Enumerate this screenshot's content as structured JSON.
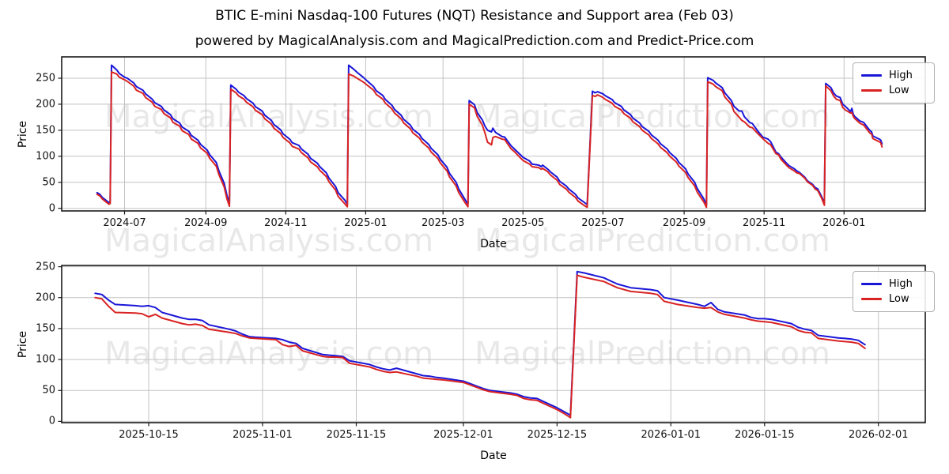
{
  "figure": {
    "title": "BTIC E-mini Nasdaq-100 Futures (NQT) Resistance and Support area (Feb 03)",
    "subtitle": "powered by MagicalAnalysis.com and MagicalPrediction.com and Predict-Price.com",
    "watermarks": {
      "left": "MagicalAnalysis.com",
      "right": "MagicalPrediction.com"
    },
    "colors": {
      "high": "#1a16d8",
      "low": "#d92323",
      "grid": "#c3c3c3",
      "spine": "#1a1a1a",
      "watermark": "#e8e8e8"
    }
  },
  "chart_data": [
    {
      "type": "line",
      "panel": "top",
      "title": "",
      "xlabel": "Date",
      "ylabel": "Price",
      "grid": true,
      "legend_position": "upper right",
      "xlim": [
        "2024-05-14",
        "2026-03-04"
      ],
      "ylim": [
        -5,
        291
      ],
      "yticks": [
        0,
        50,
        100,
        150,
        200,
        250
      ],
      "xticks": [
        {
          "date": "2024-07-01",
          "label": "2024-07"
        },
        {
          "date": "2024-09-01",
          "label": "2024-09"
        },
        {
          "date": "2024-11-01",
          "label": "2024-11"
        },
        {
          "date": "2025-01-01",
          "label": "2025-01"
        },
        {
          "date": "2025-03-01",
          "label": "2025-03"
        },
        {
          "date": "2025-05-01",
          "label": "2025-05"
        },
        {
          "date": "2025-07-01",
          "label": "2025-07"
        },
        {
          "date": "2025-09-01",
          "label": "2025-09"
        },
        {
          "date": "2025-11-01",
          "label": "2025-11"
        },
        {
          "date": "2026-01-01",
          "label": "2026-01"
        }
      ],
      "x": [
        "2024-06-10",
        "2024-06-12",
        "2024-06-14",
        "2024-06-17",
        "2024-06-19",
        "2024-06-20",
        "2024-06-21",
        "2024-06-25",
        "2024-06-27",
        "2024-07-01",
        "2024-07-03",
        "2024-07-08",
        "2024-07-10",
        "2024-07-15",
        "2024-07-17",
        "2024-07-22",
        "2024-07-24",
        "2024-07-29",
        "2024-07-31",
        "2024-08-05",
        "2024-08-07",
        "2024-08-12",
        "2024-08-14",
        "2024-08-19",
        "2024-08-21",
        "2024-08-26",
        "2024-08-28",
        "2024-09-02",
        "2024-09-04",
        "2024-09-09",
        "2024-09-11",
        "2024-09-15",
        "2024-09-17",
        "2024-09-19",
        "2024-09-20",
        "2024-09-24",
        "2024-09-26",
        "2024-09-30",
        "2024-10-02",
        "2024-10-07",
        "2024-10-09",
        "2024-10-14",
        "2024-10-16",
        "2024-10-21",
        "2024-10-23",
        "2024-10-28",
        "2024-10-30",
        "2024-11-04",
        "2024-11-06",
        "2024-11-11",
        "2024-11-13",
        "2024-11-18",
        "2024-11-20",
        "2024-11-25",
        "2024-11-27",
        "2024-12-02",
        "2024-12-04",
        "2024-12-09",
        "2024-12-11",
        "2024-12-16",
        "2024-12-18",
        "2024-12-19",
        "2024-12-23",
        "2024-12-26",
        "2024-12-30",
        "2025-01-02",
        "2025-01-07",
        "2025-01-09",
        "2025-01-14",
        "2025-01-16",
        "2025-01-21",
        "2025-01-23",
        "2025-01-28",
        "2025-01-30",
        "2025-02-04",
        "2025-02-06",
        "2025-02-11",
        "2025-02-13",
        "2025-02-18",
        "2025-02-20",
        "2025-02-25",
        "2025-02-27",
        "2025-03-04",
        "2025-03-06",
        "2025-03-11",
        "2025-03-13",
        "2025-03-18",
        "2025-03-20",
        "2025-03-21",
        "2025-03-25",
        "2025-03-27",
        "2025-03-31",
        "2025-04-02",
        "2025-04-04",
        "2025-04-07",
        "2025-04-08",
        "2025-04-10",
        "2025-04-15",
        "2025-04-17",
        "2025-04-22",
        "2025-04-24",
        "2025-04-29",
        "2025-05-01",
        "2025-05-06",
        "2025-05-08",
        "2025-05-13",
        "2025-05-15",
        "2025-05-16",
        "2025-05-20",
        "2025-05-22",
        "2025-05-27",
        "2025-05-29",
        "2025-06-03",
        "2025-06-05",
        "2025-06-10",
        "2025-06-12",
        "2025-06-17",
        "2025-06-19",
        "2025-06-23",
        "2025-06-25",
        "2025-06-27",
        "2025-07-01",
        "2025-07-03",
        "2025-07-08",
        "2025-07-10",
        "2025-07-15",
        "2025-07-17",
        "2025-07-22",
        "2025-07-24",
        "2025-07-29",
        "2025-07-31",
        "2025-08-05",
        "2025-08-07",
        "2025-08-12",
        "2025-08-14",
        "2025-08-19",
        "2025-08-21",
        "2025-08-26",
        "2025-08-28",
        "2025-09-02",
        "2025-09-04",
        "2025-09-09",
        "2025-09-11",
        "2025-09-16",
        "2025-09-18",
        "2025-09-19",
        "2025-09-23",
        "2025-09-25",
        "2025-09-30",
        "2025-10-02",
        "2025-10-07",
        "2025-10-09",
        "2025-10-13",
        "2025-10-15",
        "2025-10-17",
        "2025-10-21",
        "2025-10-23",
        "2025-10-27",
        "2025-10-29",
        "2025-10-31",
        "2025-11-04",
        "2025-11-06",
        "2025-11-10",
        "2025-11-12",
        "2025-11-14",
        "2025-11-18",
        "2025-11-20",
        "2025-11-24",
        "2025-11-26",
        "2025-11-28",
        "2025-12-02",
        "2025-12-04",
        "2025-12-08",
        "2025-12-10",
        "2025-12-12",
        "2025-12-15",
        "2025-12-17",
        "2025-12-18",
        "2025-12-19",
        "2025-12-22",
        "2025-12-24",
        "2025-12-26",
        "2025-12-29",
        "2025-12-31",
        "2026-01-02",
        "2026-01-06",
        "2026-01-07",
        "2026-01-08",
        "2026-01-09",
        "2026-01-13",
        "2026-01-15",
        "2026-01-16",
        "2026-01-20",
        "2026-01-21",
        "2026-01-22",
        "2026-01-23",
        "2026-01-27",
        "2026-01-28",
        "2026-01-29",
        "2026-01-30"
      ],
      "series": [
        {
          "name": "High",
          "color_key": "high",
          "values": [
            30,
            27,
            21,
            15,
            11,
            13,
            275,
            266,
            259,
            252,
            250,
            241,
            234,
            227,
            220,
            210,
            203,
            196,
            189,
            180,
            172,
            164,
            156,
            148,
            140,
            131,
            123,
            112,
            103,
            88,
            72,
            48,
            26,
            9,
            237,
            229,
            223,
            217,
            211,
            202,
            195,
            187,
            179,
            169,
            161,
            151,
            143,
            133,
            126,
            121,
            114,
            104,
            96,
            87,
            80,
            68,
            58,
            42,
            30,
            16,
            8,
            275,
            267,
            260,
            252,
            245,
            234,
            226,
            217,
            209,
            198,
            190,
            179,
            171,
            160,
            152,
            142,
            134,
            123,
            115,
            103,
            94,
            79,
            67,
            50,
            37,
            16,
            8,
            207,
            199,
            184,
            170,
            158,
            150,
            147,
            154,
            146,
            138,
            137,
            120,
            115,
            103,
            98,
            91,
            85,
            83,
            80,
            83,
            75,
            70,
            60,
            52,
            43,
            37,
            27,
            20,
            11,
            7,
            225,
            222,
            224,
            220,
            216,
            209,
            203,
            196,
            189,
            180,
            173,
            164,
            157,
            148,
            141,
            131,
            124,
            114,
            107,
            96,
            88,
            76,
            66,
            50,
            38,
            18,
            7,
            251,
            246,
            241,
            232,
            222,
            207,
            196,
            187,
            187,
            176,
            165,
            163,
            149,
            143,
            137,
            133,
            128,
            108,
            105,
            98,
            87,
            82,
            76,
            72,
            69,
            60,
            53,
            46,
            40,
            37,
            22,
            10,
            240,
            238,
            232,
            222,
            216,
            213,
            200,
            196,
            186,
            192,
            181,
            177,
            168,
            166,
            165,
            152,
            149,
            147,
            139,
            134,
            133,
            131,
            124
          ]
        },
        {
          "name": "Low",
          "color_key": "low",
          "values": [
            27,
            24,
            18,
            12,
            8,
            9,
            262,
            258,
            252,
            247,
            244,
            235,
            227,
            221,
            213,
            204,
            196,
            190,
            182,
            174,
            165,
            158,
            149,
            142,
            133,
            125,
            116,
            106,
            96,
            81,
            65,
            41,
            19,
            4,
            229,
            222,
            216,
            210,
            204,
            195,
            188,
            180,
            172,
            162,
            154,
            144,
            136,
            126,
            119,
            114,
            107,
            97,
            89,
            80,
            73,
            61,
            51,
            35,
            23,
            9,
            3,
            258,
            254,
            249,
            243,
            237,
            227,
            219,
            210,
            202,
            191,
            183,
            172,
            164,
            153,
            145,
            135,
            127,
            116,
            108,
            96,
            87,
            72,
            60,
            43,
            30,
            10,
            3,
            200,
            193,
            177,
            160,
            145,
            127,
            122,
            136,
            138,
            133,
            132,
            114,
            110,
            97,
            92,
            85,
            80,
            78,
            75,
            77,
            70,
            64,
            54,
            46,
            37,
            31,
            21,
            14,
            5,
            2,
            217,
            215,
            218,
            213,
            209,
            202,
            196,
            189,
            182,
            173,
            166,
            157,
            150,
            141,
            134,
            124,
            117,
            107,
            100,
            89,
            81,
            69,
            59,
            43,
            31,
            12,
            2,
            243,
            239,
            234,
            226,
            214,
            200,
            186,
            175,
            169,
            166,
            156,
            155,
            144,
            139,
            134,
            125,
            122,
            105,
            103,
            94,
            83,
            78,
            72,
            68,
            67,
            58,
            51,
            44,
            37,
            34,
            19,
            6,
            235,
            233,
            226,
            216,
            210,
            207,
            194,
            189,
            183,
            184,
            177,
            173,
            164,
            161,
            160,
            147,
            144,
            143,
            134,
            129,
            128,
            126,
            118
          ]
        }
      ]
    },
    {
      "type": "line",
      "panel": "bottom",
      "title": "",
      "xlabel": "Date",
      "ylabel": "Price",
      "grid": true,
      "legend_position": "upper right",
      "xlim": [
        "2025-10-02",
        "2026-02-08"
      ],
      "ylim": [
        -2,
        252
      ],
      "yticks": [
        0,
        50,
        100,
        150,
        200,
        250
      ],
      "xticks": [
        {
          "date": "2025-10-15",
          "label": "2025-10-15"
        },
        {
          "date": "2025-11-01",
          "label": "2025-11-01"
        },
        {
          "date": "2025-11-15",
          "label": "2025-11-15"
        },
        {
          "date": "2025-12-01",
          "label": "2025-12-01"
        },
        {
          "date": "2025-12-15",
          "label": "2025-12-15"
        },
        {
          "date": "2026-01-01",
          "label": "2026-01-01"
        },
        {
          "date": "2026-01-15",
          "label": "2026-01-15"
        },
        {
          "date": "2026-02-01",
          "label": "2026-02-01"
        }
      ],
      "x": [
        "2025-10-07",
        "2025-10-08",
        "2025-10-09",
        "2025-10-10",
        "2025-10-13",
        "2025-10-14",
        "2025-10-15",
        "2025-10-16",
        "2025-10-17",
        "2025-10-20",
        "2025-10-21",
        "2025-10-22",
        "2025-10-23",
        "2025-10-24",
        "2025-10-27",
        "2025-10-28",
        "2025-10-29",
        "2025-10-30",
        "2025-10-31",
        "2025-11-03",
        "2025-11-04",
        "2025-11-05",
        "2025-11-06",
        "2025-11-07",
        "2025-11-10",
        "2025-11-11",
        "2025-11-12",
        "2025-11-13",
        "2025-11-14",
        "2025-11-17",
        "2025-11-18",
        "2025-11-19",
        "2025-11-20",
        "2025-11-21",
        "2025-11-24",
        "2025-11-25",
        "2025-11-26",
        "2025-11-27",
        "2025-11-28",
        "2025-12-01",
        "2025-12-02",
        "2025-12-03",
        "2025-12-04",
        "2025-12-05",
        "2025-12-08",
        "2025-12-09",
        "2025-12-10",
        "2025-12-11",
        "2025-12-12",
        "2025-12-15",
        "2025-12-16",
        "2025-12-17",
        "2025-12-18",
        "2025-12-19",
        "2025-12-22",
        "2025-12-23",
        "2025-12-24",
        "2025-12-26",
        "2025-12-29",
        "2025-12-30",
        "2025-12-31",
        "2026-01-02",
        "2026-01-05",
        "2026-01-06",
        "2026-01-07",
        "2026-01-08",
        "2026-01-09",
        "2026-01-12",
        "2026-01-13",
        "2026-01-14",
        "2026-01-15",
        "2026-01-16",
        "2026-01-19",
        "2026-01-20",
        "2026-01-21",
        "2026-01-22",
        "2026-01-23",
        "2026-01-26",
        "2026-01-27",
        "2026-01-28",
        "2026-01-29",
        "2026-01-30"
      ],
      "series": [
        {
          "name": "High",
          "color_key": "high",
          "values": [
            207,
            205,
            196,
            189,
            187,
            186,
            187,
            184,
            176,
            167,
            165,
            165,
            163,
            156,
            149,
            146,
            141,
            137,
            136,
            134,
            132,
            128,
            126,
            118,
            108,
            107,
            106,
            105,
            98,
            92,
            88,
            85,
            83,
            86,
            77,
            74,
            73,
            71,
            70,
            65,
            61,
            57,
            53,
            50,
            46,
            44,
            40,
            38,
            37,
            22,
            16,
            10,
            242,
            240,
            232,
            227,
            222,
            216,
            213,
            211,
            200,
            196,
            189,
            186,
            192,
            181,
            177,
            172,
            168,
            166,
            166,
            165,
            158,
            152,
            149,
            147,
            139,
            135,
            134,
            133,
            131,
            124
          ]
        },
        {
          "name": "Low",
          "color_key": "low",
          "values": [
            200,
            198,
            186,
            176,
            175,
            174,
            169,
            173,
            167,
            158,
            156,
            157,
            155,
            149,
            144,
            142,
            138,
            135,
            134,
            132,
            124,
            121,
            123,
            114,
            105,
            104,
            104,
            103,
            94,
            88,
            84,
            81,
            79,
            80,
            73,
            70,
            69,
            68,
            67,
            63,
            59,
            55,
            51,
            48,
            44,
            42,
            37,
            35,
            34,
            19,
            13,
            6,
            236,
            233,
            226,
            221,
            216,
            210,
            207,
            205,
            194,
            189,
            184,
            183,
            184,
            177,
            173,
            167,
            164,
            162,
            161,
            160,
            153,
            147,
            144,
            143,
            134,
            130,
            129,
            128,
            126,
            118
          ]
        }
      ]
    }
  ]
}
